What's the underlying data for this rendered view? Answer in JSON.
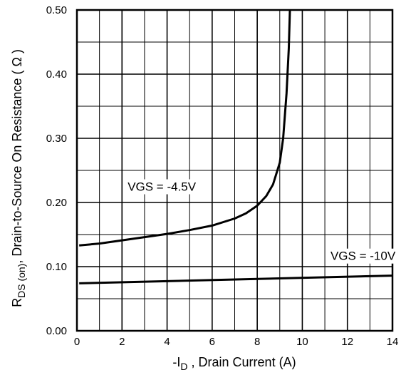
{
  "chart_data": {
    "type": "line",
    "xlabel_prefix": "-I",
    "xlabel_sub": "D",
    "xlabel_suffix": " , Drain Current (A)",
    "ylabel_prefix": "R",
    "ylabel_sub": "DS (on)",
    "ylabel_suffix": ", Drain-to-Source On Resistance ( Ω )",
    "xlim": [
      0,
      14
    ],
    "ylim": [
      0,
      0.5
    ],
    "x_ticks": [
      "0",
      "2",
      "4",
      "6",
      "8",
      "10",
      "12",
      "14"
    ],
    "y_ticks": [
      "0.00",
      "0.10",
      "0.20",
      "0.30",
      "0.40",
      "0.50"
    ],
    "grid": true,
    "series": [
      {
        "name": "VGS = -4.5V",
        "x": [
          0.1,
          1,
          2,
          3,
          4,
          5,
          6,
          7,
          7.5,
          8,
          8.4,
          8.7,
          9.0,
          9.15,
          9.3,
          9.4,
          9.45
        ],
        "y": [
          0.133,
          0.136,
          0.141,
          0.146,
          0.151,
          0.157,
          0.164,
          0.175,
          0.183,
          0.195,
          0.21,
          0.228,
          0.262,
          0.3,
          0.37,
          0.44,
          0.5
        ]
      },
      {
        "name": "VGS = -10V",
        "x": [
          0.1,
          14
        ],
        "y": [
          0.074,
          0.086
        ]
      }
    ]
  }
}
